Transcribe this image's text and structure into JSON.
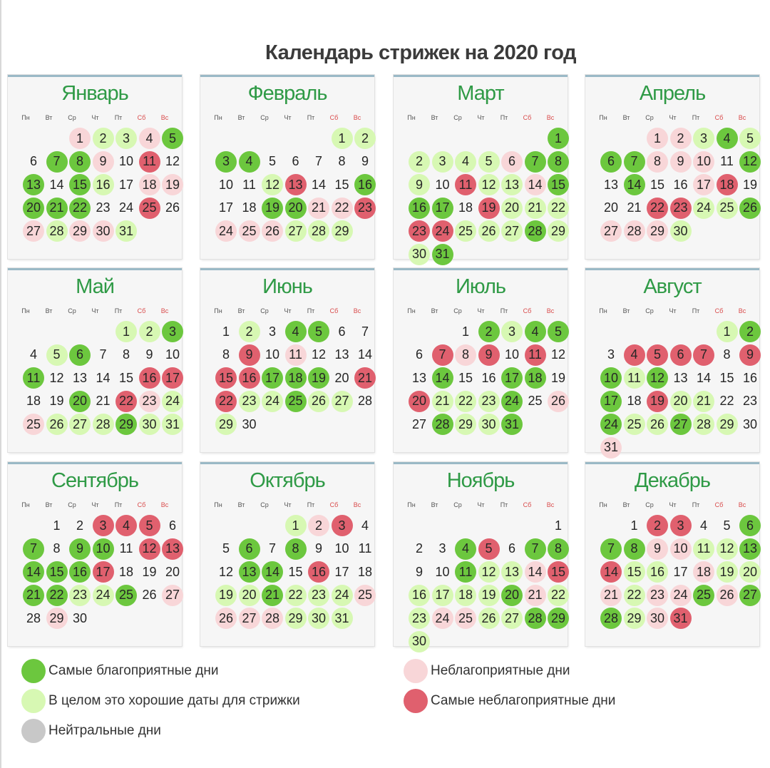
{
  "title": "Календарь стрижек на 2020 год",
  "weekdays": [
    "Пн",
    "Вт",
    "Ср",
    "Чт",
    "Пт",
    "Сб",
    "Вс"
  ],
  "colors": {
    "best": "#6cc73e",
    "good": "#d7f8b3",
    "bad": "#f8d6d8",
    "worst": "#e0606e",
    "neutral": "#c8c8c8"
  },
  "legend": [
    {
      "key": "best",
      "label": "Самые благоприятные дни"
    },
    {
      "key": "good",
      "label": "В целом это хорошие даты для стрижки"
    },
    {
      "key": "neutral",
      "label": "Нейтральные дни"
    },
    {
      "key": "bad",
      "label": "Неблагоприятные дни"
    },
    {
      "key": "worst",
      "label": "Самые неблагоприятные дни"
    }
  ],
  "months": [
    {
      "name": "Январь",
      "start": 2,
      "days": 31,
      "best": [
        5,
        7,
        8,
        13,
        15,
        20,
        21,
        22
      ],
      "good": [
        2,
        3,
        16,
        28,
        31
      ],
      "bad": [
        1,
        4,
        9,
        18,
        19,
        27,
        29,
        30
      ],
      "worst": [
        11,
        25
      ]
    },
    {
      "name": "Февраль",
      "start": 5,
      "days": 29,
      "best": [
        3,
        4,
        16,
        19,
        20
      ],
      "good": [
        1,
        2,
        12,
        27,
        28,
        29
      ],
      "bad": [
        21,
        22,
        24,
        25,
        26
      ],
      "worst": [
        13,
        23
      ]
    },
    {
      "name": "Март",
      "start": 6,
      "days": 31,
      "best": [
        1,
        7,
        8,
        15,
        16,
        17,
        28,
        31
      ],
      "good": [
        2,
        3,
        4,
        5,
        9,
        12,
        13,
        20,
        21,
        22,
        25,
        26,
        27,
        29,
        30
      ],
      "bad": [
        6,
        14
      ],
      "worst": [
        11,
        19,
        23,
        24
      ]
    },
    {
      "name": "Апрель",
      "start": 2,
      "days": 30,
      "best": [
        4,
        6,
        7,
        12,
        14,
        26
      ],
      "good": [
        3,
        5,
        24,
        25,
        30
      ],
      "bad": [
        1,
        2,
        8,
        9,
        10,
        17,
        27,
        28,
        29
      ],
      "worst": [
        18,
        22,
        23
      ]
    },
    {
      "name": "Май",
      "start": 4,
      "days": 31,
      "best": [
        3,
        6,
        11,
        20,
        29
      ],
      "good": [
        1,
        2,
        5,
        24,
        26,
        27,
        28,
        30,
        31
      ],
      "bad": [
        23,
        25
      ],
      "worst": [
        16,
        17,
        22
      ]
    },
    {
      "name": "Июнь",
      "start": 0,
      "days": 30,
      "best": [
        4,
        5,
        17,
        18,
        19,
        25
      ],
      "good": [
        2,
        23,
        24,
        26,
        27,
        29
      ],
      "bad": [
        11
      ],
      "worst": [
        9,
        15,
        16,
        21,
        22
      ]
    },
    {
      "name": "Июль",
      "start": 2,
      "days": 31,
      "best": [
        2,
        4,
        5,
        14,
        17,
        18,
        24,
        28,
        31
      ],
      "good": [
        3,
        21,
        22,
        23,
        29,
        30
      ],
      "bad": [
        8,
        26
      ],
      "worst": [
        7,
        9,
        11,
        20
      ]
    },
    {
      "name": "Август",
      "start": 5,
      "days": 31,
      "best": [
        2,
        10,
        12,
        17,
        24,
        27
      ],
      "good": [
        1,
        11,
        20,
        21,
        25,
        26,
        28,
        29
      ],
      "bad": [
        31
      ],
      "worst": [
        4,
        5,
        6,
        7,
        9,
        19
      ]
    },
    {
      "name": "Сентябрь",
      "start": 1,
      "days": 30,
      "best": [
        7,
        9,
        10,
        14,
        15,
        16,
        21,
        22,
        25
      ],
      "good": [
        23,
        24
      ],
      "bad": [
        27,
        29
      ],
      "worst": [
        3,
        4,
        5,
        12,
        13,
        17
      ]
    },
    {
      "name": "Октябрь",
      "start": 3,
      "days": 31,
      "best": [
        6,
        8,
        13,
        14,
        21
      ],
      "good": [
        1,
        19,
        20,
        22,
        23,
        24,
        29,
        30,
        31
      ],
      "bad": [
        2,
        25,
        26,
        27,
        28
      ],
      "worst": [
        3,
        16
      ]
    },
    {
      "name": "Ноябрь",
      "start": 6,
      "days": 30,
      "best": [
        4,
        7,
        8,
        11,
        20,
        28,
        29
      ],
      "good": [
        12,
        13,
        16,
        17,
        18,
        19,
        22,
        23,
        26,
        27,
        30
      ],
      "bad": [
        14,
        21,
        24,
        25
      ],
      "worst": [
        5,
        15
      ]
    },
    {
      "name": "Декабрь",
      "start": 1,
      "days": 31,
      "best": [
        6,
        7,
        8,
        13,
        25,
        27,
        28
      ],
      "good": [
        11,
        12,
        15,
        16,
        19,
        20,
        22,
        29
      ],
      "bad": [
        9,
        10,
        18,
        21,
        23,
        24,
        26,
        30
      ],
      "worst": [
        2,
        3,
        14,
        31
      ]
    }
  ]
}
